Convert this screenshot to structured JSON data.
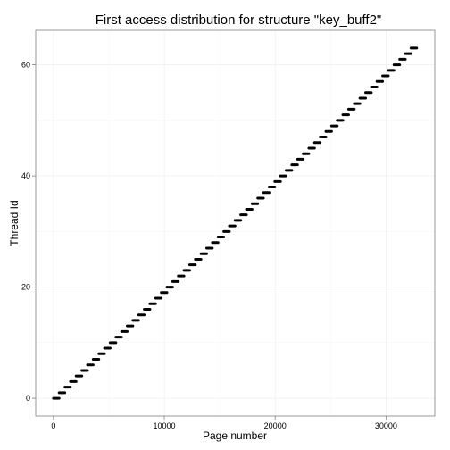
{
  "chart_data": {
    "type": "scatter",
    "title": "First access distribution for structure \"key_buff2\"",
    "xlabel": "Page number",
    "ylabel": "Thread Id",
    "xlim": [
      -1600,
      34400
    ],
    "ylim": [
      -3.2,
      66.2
    ],
    "x_ticks": [
      0,
      10000,
      20000,
      30000
    ],
    "x_tick_labels": [
      "0",
      "10000",
      "20000",
      "30000"
    ],
    "y_ticks": [
      0,
      20,
      40,
      60
    ],
    "y_tick_labels": [
      "0",
      "20",
      "40",
      "60"
    ],
    "grid": true,
    "legend": "none",
    "threads": 64,
    "pages_per_thread": 512,
    "series_color": "#000000",
    "segments": "thread t accesses pages t*512 to (t+1)*512-1"
  }
}
